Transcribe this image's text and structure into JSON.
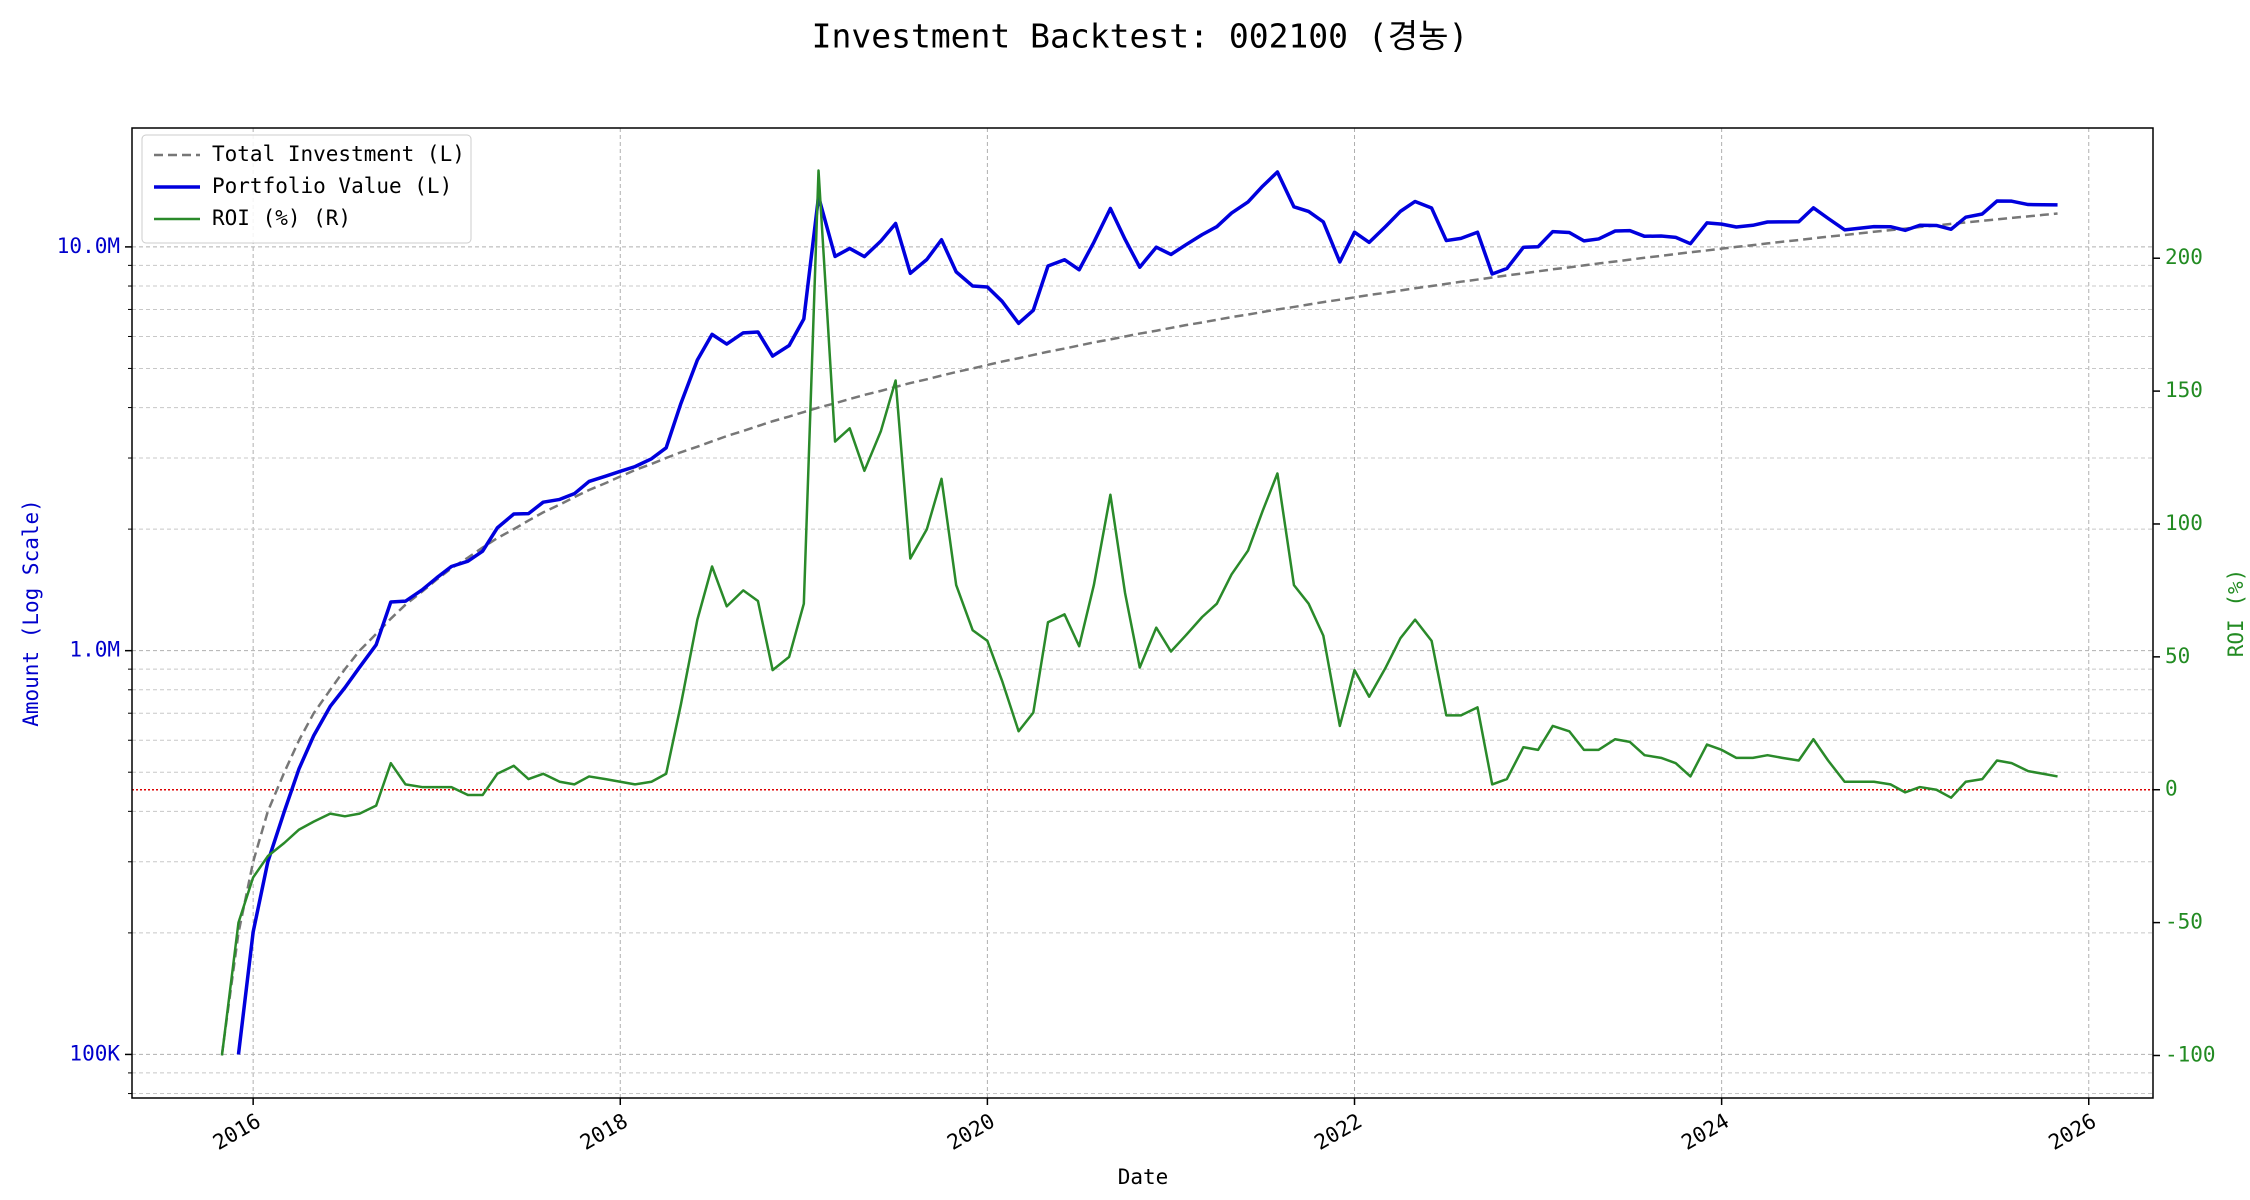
{
  "chart_data": {
    "type": "line",
    "title": "Investment Backtest: 002100 (경농)",
    "xlabel": "Date",
    "ylabel": "Amount (Log Scale)",
    "y2label": "ROI (%)",
    "ylog": true,
    "grid": true,
    "legend": "upper left",
    "ylabel_color": "#0000cc",
    "y2label_color": "#228b22",
    "xlim": [
      2015.34,
      2026.35
    ],
    "xticks": [
      2016,
      2018,
      2020,
      2022,
      2024,
      2026
    ],
    "ylim": [
      78000,
      19700000
    ],
    "yticks": [
      {
        "value": 100000,
        "label": "100K"
      },
      {
        "value": 1000000,
        "label": "1.0M"
      },
      {
        "value": 10000000,
        "label": "10.0M"
      }
    ],
    "yminorticks": [
      80000,
      90000,
      200000,
      300000,
      400000,
      500000,
      600000,
      700000,
      800000,
      900000,
      2000000,
      3000000,
      4000000,
      5000000,
      6000000,
      7000000,
      8000000,
      9000000
    ],
    "y2lim": [
      -116,
      249
    ],
    "y2ticks": [
      -100,
      -50,
      0,
      50,
      100,
      150,
      200
    ],
    "y2_refline": {
      "value": 0,
      "color": "#dd0000"
    },
    "x": [
      2015.83,
      2015.92,
      2016.0,
      2016.08,
      2016.17,
      2016.25,
      2016.33,
      2016.42,
      2016.5,
      2016.58,
      2016.67,
      2016.75,
      2016.83,
      2016.92,
      2017.0,
      2017.08,
      2017.17,
      2017.25,
      2017.33,
      2017.42,
      2017.5,
      2017.58,
      2017.67,
      2017.75,
      2017.83,
      2017.92,
      2018.0,
      2018.08,
      2018.17,
      2018.25,
      2018.33,
      2018.42,
      2018.5,
      2018.58,
      2018.67,
      2018.75,
      2018.83,
      2018.92,
      2019.0,
      2019.08,
      2019.17,
      2019.25,
      2019.33,
      2019.42,
      2019.5,
      2019.58,
      2019.67,
      2019.75,
      2019.83,
      2019.92,
      2020.0,
      2020.08,
      2020.17,
      2020.25,
      2020.33,
      2020.42,
      2020.5,
      2020.58,
      2020.67,
      2020.75,
      2020.83,
      2020.92,
      2021.0,
      2021.08,
      2021.17,
      2021.25,
      2021.33,
      2021.42,
      2021.5,
      2021.58,
      2021.67,
      2021.75,
      2021.83,
      2021.92,
      2022.0,
      2022.08,
      2022.17,
      2022.25,
      2022.33,
      2022.42,
      2022.5,
      2022.58,
      2022.67,
      2022.75,
      2022.83,
      2022.92,
      2023.0,
      2023.08,
      2023.17,
      2023.25,
      2023.33,
      2023.42,
      2023.5,
      2023.58,
      2023.67,
      2023.75,
      2023.83,
      2023.92,
      2024.0,
      2024.08,
      2024.17,
      2024.25,
      2024.33,
      2024.42,
      2024.5,
      2024.58,
      2024.67,
      2024.75,
      2024.83,
      2024.92,
      2025.0,
      2025.08,
      2025.17,
      2025.25,
      2025.33,
      2025.42,
      2025.5,
      2025.58,
      2025.67,
      2025.75,
      2025.83
    ],
    "series": [
      {
        "name": "Total Investment (L)",
        "color": "#777777",
        "dash": true,
        "axis": "y",
        "values": [
          100000,
          200000,
          300000,
          400000,
          500000,
          600000,
          700000,
          800000,
          900000,
          1000000,
          1100000,
          1200000,
          1300000,
          1400000,
          1500000,
          1600000,
          1700000,
          1800000,
          1900000,
          2000000,
          2100000,
          2200000,
          2300000,
          2400000,
          2500000,
          2600000,
          2700000,
          2800000,
          2900000,
          3000000,
          3100000,
          3200000,
          3300000,
          3400000,
          3500000,
          3600000,
          3700000,
          3800000,
          3900000,
          4000000,
          4100000,
          4200000,
          4300000,
          4400000,
          4500000,
          4600000,
          4700000,
          4800000,
          4900000,
          5000000,
          5100000,
          5200000,
          5300000,
          5400000,
          5500000,
          5600000,
          5700000,
          5800000,
          5900000,
          6000000,
          6100000,
          6200000,
          6300000,
          6400000,
          6500000,
          6600000,
          6700000,
          6800000,
          6900000,
          7000000,
          7100000,
          7200000,
          7300000,
          7400000,
          7500000,
          7600000,
          7700000,
          7800000,
          7900000,
          8000000,
          8100000,
          8200000,
          8300000,
          8400000,
          8500000,
          8600000,
          8700000,
          8800000,
          8900000,
          9000000,
          9100000,
          9200000,
          9300000,
          9400000,
          9500000,
          9600000,
          9700000,
          9800000,
          9900000,
          10000000,
          10100000,
          10200000,
          10300000,
          10400000,
          10500000,
          10600000,
          10700000,
          10800000,
          10900000,
          11000000,
          11100000,
          11200000,
          11300000,
          11400000,
          11500000,
          11600000,
          11700000,
          11800000,
          11900000,
          12000000,
          12100000
        ]
      },
      {
        "name": "Portfolio Value (L)",
        "color": "#0000dd",
        "width": 3.5,
        "axis": "y",
        "values": [
          null,
          100000,
          201000,
          300000,
          400000,
          510000,
          616000,
          728000,
          810000,
          910000,
          1034000,
          1320000,
          1326000,
          1414000,
          1515000,
          1616000,
          1666000,
          1764000,
          2014000,
          2180000,
          2184000,
          2332000,
          2369000,
          2448000,
          2625000,
          2704000,
          2781000,
          2856000,
          2987000,
          3180000,
          4092000,
          5248000,
          6072000,
          5746000,
          6125000,
          6156000,
          5365000,
          5700000,
          6630000,
          13320000,
          9471000,
          9912000,
          9460000,
          10340000,
          11430000,
          8602000,
          9306000,
          10416000,
          8673000,
          8000000,
          7956000,
          7332000,
          6466000,
          6966000,
          8965000,
          9296000,
          8778000,
          10266000,
          12449000,
          10440000,
          8906000,
          9982000,
          9576000,
          10112000,
          10725000,
          11220000,
          12127000,
          12920000,
          14145000,
          15330000,
          12567000,
          12240000,
          11534000,
          9176000,
          10875000,
          10260000,
          11242000,
          12246000,
          12956000,
          12480000,
          10368000,
          10496000,
          10873000,
          8568000,
          8840000,
          9976000,
          10005000,
          10912000,
          10858000,
          10350000,
          10465000,
          10948000,
          10974000,
          10622000,
          10640000,
          10560000,
          10185000,
          11466000,
          11385000,
          11200000,
          11312000,
          11526000,
          11536000,
          11544000,
          12495000,
          11766000,
          11021000,
          11124000,
          11227000,
          11220000,
          10989000,
          11312000,
          11300000,
          11058000,
          11845000,
          12064000,
          12987000,
          12980000,
          12733000,
          12720000,
          12705000
        ]
      },
      {
        "name": "ROI (%) (R)",
        "color": "#2a8a2a",
        "width": 2.5,
        "axis": "y2",
        "values": [
          -100,
          -50,
          -33,
          -25,
          -20,
          -15,
          -12,
          -9,
          -10,
          -9,
          -6,
          10,
          2,
          1,
          1,
          1,
          -2,
          -2,
          6,
          9,
          4,
          6,
          3,
          2,
          5,
          4,
          3,
          2,
          3,
          6,
          32,
          64,
          84,
          69,
          75,
          71,
          45,
          50,
          70,
          233,
          131,
          136,
          120,
          135,
          154,
          87,
          98,
          117,
          77,
          60,
          56,
          41,
          22,
          29,
          63,
          66,
          54,
          77,
          111,
          74,
          46,
          61,
          52,
          58,
          65,
          70,
          81,
          90,
          105,
          119,
          77,
          70,
          58,
          24,
          45,
          35,
          46,
          57,
          64,
          56,
          28,
          28,
          31,
          2,
          4,
          16,
          15,
          24,
          22,
          15,
          15,
          19,
          18,
          13,
          12,
          10,
          5,
          17,
          15,
          12,
          12,
          13,
          12,
          11,
          19,
          11,
          3,
          3,
          3,
          2,
          -1,
          1,
          0,
          -3,
          3,
          4,
          11,
          10,
          7,
          6,
          5
        ]
      }
    ]
  }
}
